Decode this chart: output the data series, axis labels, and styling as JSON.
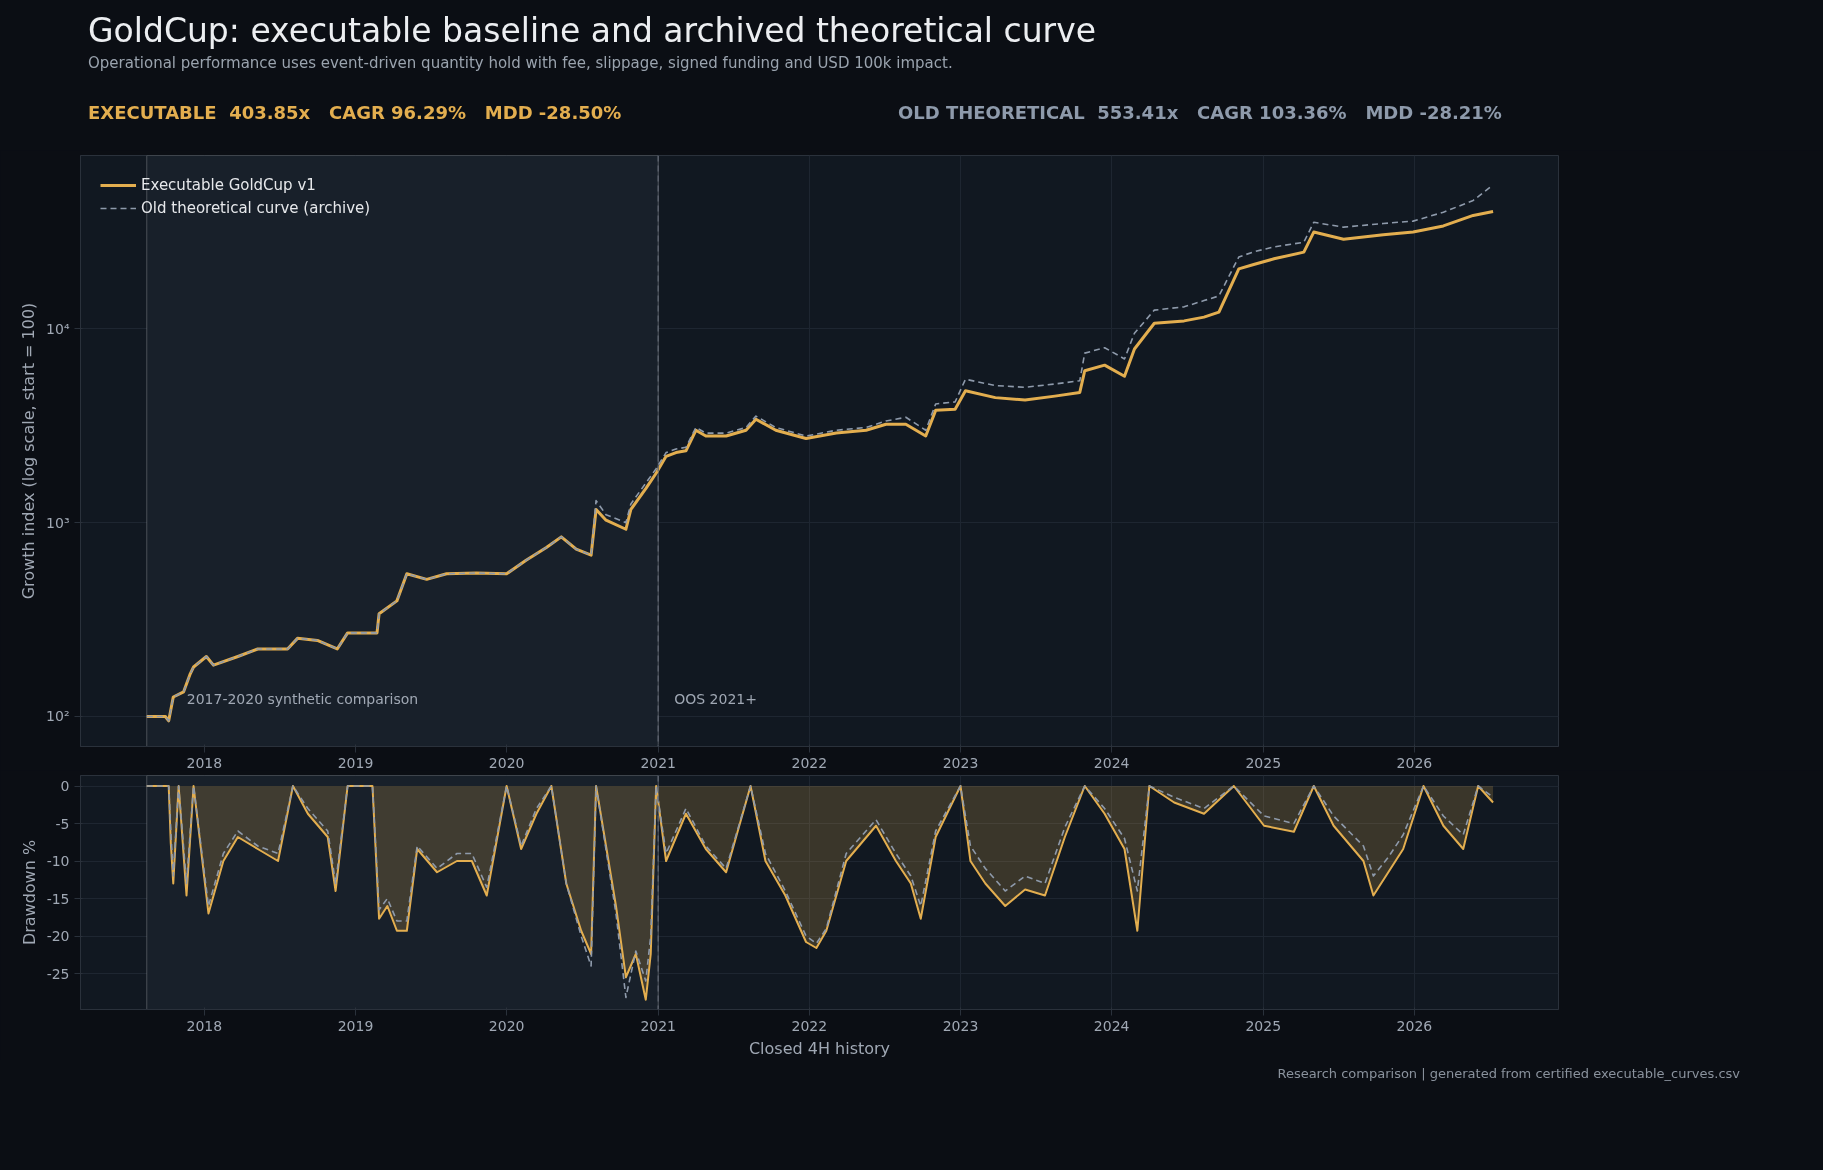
{
  "chart_data": [
    {
      "type": "line",
      "title": "GoldCup: executable baseline and archived theoretical curve",
      "subtitle": "Operational performance uses event-driven quantity hold with fee, slippage, signed funding and USD 100k impact.",
      "annotations": [
        "EXECUTABLE  403.85x   CAGR 96.29%   MDD -28.50%",
        "OLD THEORETICAL  553.41x   CAGR 103.36%   MDD -28.21%"
      ],
      "ylabel": "Growth index (log scale, start = 100)",
      "log": true,
      "grid": true,
      "legend": "top left",
      "xlim": [
        "2017-03-08",
        "2026-12-15"
      ],
      "xticks": [
        "2018",
        "2019",
        "2020",
        "2021",
        "2022",
        "2023",
        "2024",
        "2025",
        "2026"
      ],
      "ylim": [
        70,
        78500
      ],
      "yticks": [
        {
          "value": 100,
          "label": "10²"
        },
        {
          "value": 1000,
          "label": "10³"
        },
        {
          "value": 10000,
          "label": "10⁴"
        }
      ],
      "bands": [
        {
          "axis": "x",
          "from": "2017-08-15",
          "to": "2021-01-01",
          "label": "2017-2020 synthetic comparison",
          "color": "#18202a"
        }
      ],
      "ref_lines": [
        {
          "axis": "x",
          "value": "2021-01-01",
          "label": "OOS 2021+",
          "line_style": "dashed",
          "color": "#5c636e"
        }
      ],
      "x": [
        "2017-08-15",
        "2017-09-29",
        "2017-10-07",
        "2017-10-18",
        "2017-11-12",
        "2017-11-28",
        "2017-12-06",
        "2018-01-06",
        "2018-01-23",
        "2018-03-23",
        "2018-05-10",
        "2018-07-21",
        "2018-08-14",
        "2018-10-01",
        "2018-11-18",
        "2018-12-13",
        "2019-02-22",
        "2019-02-27",
        "2019-04-11",
        "2019-05-05",
        "2019-06-22",
        "2019-08-09",
        "2019-10-20",
        "2020-01-01",
        "2020-02-17",
        "2020-04-06",
        "2020-05-12",
        "2020-06-17",
        "2020-07-23",
        "2020-08-04",
        "2020-08-28",
        "2020-10-15",
        "2020-10-27",
        "2020-12-02",
        "2020-12-27",
        "2021-01-20",
        "2021-02-13",
        "2021-03-09",
        "2021-04-02",
        "2021-04-26",
        "2021-06-14",
        "2021-08-01",
        "2021-08-25",
        "2021-10-12",
        "2021-12-24",
        "2022-03-07",
        "2022-05-18",
        "2022-07-05",
        "2022-08-22",
        "2022-10-09",
        "2022-11-02",
        "2022-12-19",
        "2023-01-13",
        "2023-03-26",
        "2023-06-06",
        "2023-08-17",
        "2023-10-16",
        "2023-10-28",
        "2023-12-15",
        "2024-02-01",
        "2024-02-25",
        "2024-04-13",
        "2024-06-24",
        "2024-08-11",
        "2024-09-16",
        "2024-11-03",
        "2024-12-09",
        "2025-01-27",
        "2025-04-09",
        "2025-05-03",
        "2025-07-14",
        "2025-10-18",
        "2025-12-29",
        "2026-03-12",
        "2026-05-23",
        "2026-07-10"
      ],
      "series": [
        {
          "name": "Executable GoldCup v1",
          "color": "#e3ae4f",
          "line_style": "solid",
          "values": [
            100,
            100,
            95,
            126,
            134,
            166,
            180,
            204,
            184,
            204,
            223,
            223,
            253,
            247,
            223,
            270,
            270,
            339,
            395,
            545,
            510,
            545,
            550,
            545,
            640,
            745,
            845,
            730,
            680,
            1170,
            1030,
            925,
            1170,
            1500,
            1800,
            2200,
            2300,
            2350,
            3000,
            2800,
            2800,
            3000,
            3420,
            3000,
            2720,
            2900,
            3000,
            3220,
            3220,
            2800,
            3800,
            3850,
            4800,
            4420,
            4300,
            4500,
            4700,
            6080,
            6500,
            5700,
            7880,
            10700,
            11000,
            11500,
            12200,
            20400,
            21500,
            23000,
            24900,
            31600,
            29000,
            30600,
            31600,
            34000,
            38500,
            40385
          ]
        },
        {
          "name": "Old theoretical curve (archive)",
          "color": "#8e9aab",
          "line_style": "dashed",
          "values": [
            100,
            100,
            95,
            126,
            134,
            166,
            180,
            204,
            184,
            204,
            223,
            223,
            253,
            247,
            223,
            270,
            270,
            339,
            395,
            545,
            510,
            545,
            550,
            545,
            640,
            745,
            845,
            730,
            680,
            1300,
            1100,
            1000,
            1250,
            1600,
            1900,
            2300,
            2400,
            2450,
            3100,
            2900,
            2900,
            3100,
            3550,
            3100,
            2800,
            3000,
            3100,
            3350,
            3500,
            3000,
            4100,
            4200,
            5500,
            5100,
            5000,
            5200,
            5400,
            7500,
            8000,
            7000,
            9500,
            12500,
            13000,
            14000,
            14800,
            23500,
            25000,
            26500,
            28000,
            35500,
            33500,
            35000,
            36000,
            40000,
            46000,
            55341
          ]
        }
      ]
    },
    {
      "type": "line",
      "xlabel": "Closed 4H history",
      "ylabel": "Drawdown %",
      "grid": true,
      "annotations": [
        "Research comparison | generated from certified executable_curves.csv"
      ],
      "xlim": [
        "2017-03-08",
        "2026-12-15"
      ],
      "xticks": [
        "2018",
        "2019",
        "2020",
        "2021",
        "2022",
        "2023",
        "2024",
        "2025",
        "2026"
      ],
      "ylim": [
        -29.8,
        1.4
      ],
      "yticks": [
        0,
        -5,
        -10,
        -15,
        -20,
        -25
      ],
      "bands": [
        {
          "axis": "x",
          "from": "2017-08-15",
          "to": "2021-01-01",
          "color": "#18202a"
        }
      ],
      "ref_lines": [
        {
          "axis": "x",
          "value": "2021-01-01",
          "line_style": "dashed",
          "color": "#5c636e"
        }
      ],
      "x": [
        "2017-08-15",
        "2017-10-07",
        "2017-10-12",
        "2017-10-18",
        "2017-10-31",
        "2017-11-19",
        "2017-12-06",
        "2018-01-11",
        "2018-02-16",
        "2018-03-23",
        "2018-05-10",
        "2018-06-28",
        "2018-08-03",
        "2018-09-08",
        "2018-10-26",
        "2018-11-14",
        "2018-12-13",
        "2019-02-11",
        "2019-02-27",
        "2019-03-19",
        "2019-04-11",
        "2019-05-05",
        "2019-05-30",
        "2019-07-17",
        "2019-09-03",
        "2019-10-09",
        "2019-11-14",
        "2020-01-01",
        "2020-02-05",
        "2020-03-13",
        "2020-04-18",
        "2020-05-24",
        "2020-06-29",
        "2020-07-23",
        "2020-08-04",
        "2020-09-21",
        "2020-10-15",
        "2020-11-08",
        "2020-12-02",
        "2020-12-14",
        "2020-12-27",
        "2021-01-20",
        "2021-03-09",
        "2021-04-26",
        "2021-06-14",
        "2021-08-12",
        "2021-09-17",
        "2021-11-04",
        "2021-12-24",
        "2022-01-18",
        "2022-02-11",
        "2022-03-31",
        "2022-06-11",
        "2022-07-29",
        "2022-09-03",
        "2022-09-27",
        "2022-11-02",
        "2023-01-01",
        "2023-01-25",
        "2023-03-02",
        "2023-04-19",
        "2023-06-06",
        "2023-07-24",
        "2023-09-10",
        "2023-10-28",
        "2023-12-15",
        "2024-02-01",
        "2024-03-03",
        "2024-04-01",
        "2024-05-31",
        "2024-08-11",
        "2024-10-22",
        "2025-01-03",
        "2025-03-16",
        "2025-05-03",
        "2025-06-20",
        "2025-08-31",
        "2025-09-24",
        "2025-10-30",
        "2025-12-05",
        "2026-01-23",
        "2026-03-12",
        "2026-04-29",
        "2026-06-04",
        "2026-07-10"
      ],
      "series": [
        {
          "type": "area",
          "color": "#e3ae4f",
          "line_style": "solid",
          "values": [
            0,
            0,
            -7.6,
            -13,
            0,
            -14.6,
            0,
            -17,
            -10,
            -6.8,
            -8.4,
            -10,
            0,
            -3.7,
            -6.8,
            -14,
            0,
            0,
            -17.7,
            -16,
            -19.3,
            -19.3,
            -8.4,
            -11.5,
            -10,
            -10,
            -14.6,
            0,
            -8.4,
            -3.7,
            0,
            -13,
            -19.3,
            -22.4,
            0,
            -16,
            -25.5,
            -22.4,
            -28.5,
            -22.4,
            0,
            -10,
            -3.7,
            -8.4,
            -11.5,
            0,
            -10,
            -14.6,
            -20.8,
            -21.6,
            -19.3,
            -10,
            -5.3,
            -10,
            -13,
            -17.7,
            -6.8,
            0,
            -10,
            -13,
            -16,
            -13.8,
            -14.6,
            -6.8,
            0,
            -3.7,
            -8.4,
            -19.3,
            0,
            -2.2,
            -3.7,
            0,
            -5.3,
            -6.1,
            0,
            -5.3,
            -10,
            -14.6,
            -11.5,
            -8.4,
            0,
            -5.3,
            -8.4,
            0,
            -2.2
          ]
        },
        {
          "type": "line",
          "color": "#8e9aab",
          "line_style": "dashed",
          "values": [
            0,
            0,
            -6,
            -12,
            0,
            -13,
            0,
            -16,
            -9,
            -6,
            -8,
            -9,
            0,
            -3,
            -6,
            -13,
            0,
            0,
            -16.5,
            -15,
            -18,
            -18,
            -8,
            -11,
            -9,
            -9,
            -13.5,
            0,
            -8,
            -3,
            0,
            -13,
            -20,
            -24,
            0,
            -17,
            -28.2,
            -22,
            -26,
            -20,
            0,
            -9,
            -3,
            -8,
            -11,
            0,
            -9,
            -14,
            -20,
            -21,
            -19,
            -9,
            -4.5,
            -9,
            -12,
            -16,
            -6,
            0,
            -8,
            -11,
            -14,
            -12,
            -13,
            -5.5,
            0,
            -3,
            -7,
            -14,
            0,
            -1.5,
            -3,
            0,
            -4,
            -5,
            0,
            -4,
            -8,
            -12,
            -9.5,
            -6.5,
            0,
            -4,
            -6.5,
            0,
            -1.5
          ]
        }
      ]
    }
  ]
}
